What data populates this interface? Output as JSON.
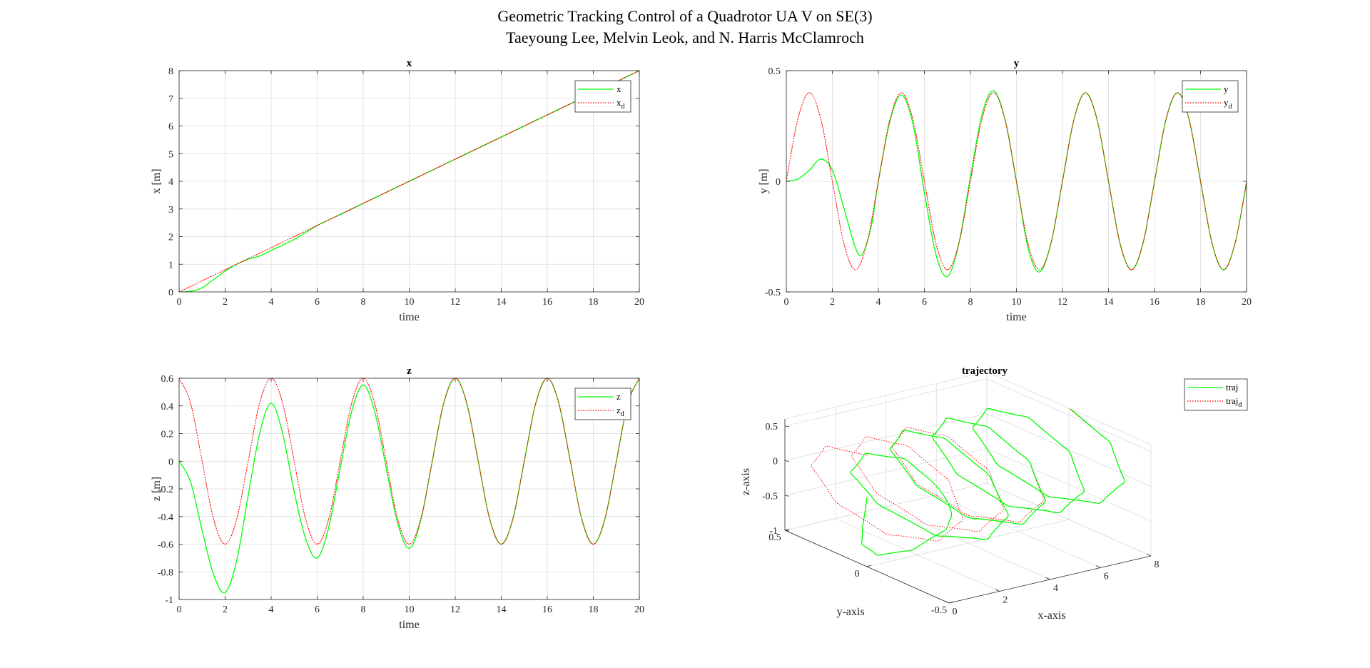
{
  "figure": {
    "title_line1": "Geometric Tracking Control of a Quadrotor UA V on SE(3)",
    "title_line2": "Taeyoung Lee, Melvin Leok, and N. Harris McClamroch"
  },
  "colors": {
    "actual": "#00ff00",
    "desired": "#ff0000"
  },
  "chart_data": [
    {
      "type": "line",
      "title": "x",
      "xlabel": "time",
      "ylabel": "x [m]",
      "xlim": [
        0,
        20
      ],
      "ylim": [
        0,
        8
      ],
      "xticks": [
        0,
        2,
        4,
        6,
        8,
        10,
        12,
        14,
        16,
        18,
        20
      ],
      "yticks": [
        0,
        1,
        2,
        3,
        4,
        5,
        6,
        7,
        8
      ],
      "grid": true,
      "legend_position": "top-right",
      "series": [
        {
          "name": "x",
          "style": "solid",
          "x": [
            0,
            0.5,
            1,
            1.5,
            2,
            2.5,
            3,
            3.5,
            4,
            5,
            6,
            7,
            8,
            9,
            10,
            12,
            14,
            16,
            18,
            20
          ],
          "y": [
            0,
            0.02,
            0.15,
            0.45,
            0.75,
            1.0,
            1.18,
            1.3,
            1.5,
            1.9,
            2.4,
            2.8,
            3.2,
            3.6,
            4.0,
            4.8,
            5.6,
            6.4,
            7.2,
            8.0
          ]
        },
        {
          "name": "x",
          "sub": "d",
          "style": "dotted",
          "x": [
            0,
            1,
            2,
            3,
            4,
            5,
            6,
            7,
            8,
            9,
            10,
            12,
            14,
            16,
            18,
            20
          ],
          "y": [
            0,
            0.4,
            0.8,
            1.2,
            1.6,
            2.0,
            2.4,
            2.8,
            3.2,
            3.6,
            4.0,
            4.8,
            5.6,
            6.4,
            7.2,
            8.0
          ]
        }
      ]
    },
    {
      "type": "line",
      "title": "y",
      "xlabel": "time",
      "ylabel": "y [m]",
      "xlim": [
        0,
        20
      ],
      "ylim": [
        -0.5,
        0.5
      ],
      "xticks": [
        0,
        2,
        4,
        6,
        8,
        10,
        12,
        14,
        16,
        18,
        20
      ],
      "yticks": [
        -0.5,
        0,
        0.5
      ],
      "grid": true,
      "legend_position": "top-right",
      "series": [
        {
          "name": "y",
          "style": "solid",
          "x": [
            0,
            0.5,
            1,
            1.5,
            2,
            2.5,
            3,
            3.3,
            3.7,
            4,
            4.5,
            5,
            5.5,
            6,
            6.5,
            7,
            7.5,
            8,
            8.5,
            9,
            9.5,
            10,
            10.5,
            11,
            11.5,
            12,
            12.5,
            13,
            13.5,
            14,
            14.5,
            15,
            15.5,
            16,
            16.5,
            17,
            17.5,
            18,
            18.5,
            19,
            19.5,
            20
          ],
          "y": [
            0,
            0.01,
            0.05,
            0.1,
            0.05,
            -0.12,
            -0.3,
            -0.33,
            -0.2,
            0.0,
            0.27,
            0.39,
            0.26,
            -0.05,
            -0.33,
            -0.43,
            -0.28,
            0.02,
            0.3,
            0.41,
            0.28,
            0.0,
            -0.3,
            -0.41,
            -0.28,
            0.0,
            0.28,
            0.4,
            0.28,
            0.0,
            -0.28,
            -0.4,
            -0.28,
            0.0,
            0.28,
            0.4,
            0.28,
            0.0,
            -0.28,
            -0.4,
            -0.28,
            -0.01
          ]
        },
        {
          "name": "y",
          "sub": "d",
          "style": "dotted",
          "x": [
            0,
            0.5,
            1,
            1.5,
            2,
            2.5,
            3,
            3.5,
            4,
            4.5,
            5,
            5.5,
            6,
            6.5,
            7,
            7.5,
            8,
            8.5,
            9,
            9.5,
            10,
            10.5,
            11,
            11.5,
            12,
            12.5,
            13,
            13.5,
            14,
            14.5,
            15,
            15.5,
            16,
            16.5,
            17,
            17.5,
            18,
            18.5,
            19,
            19.5,
            20
          ],
          "y": [
            0,
            0.28,
            0.4,
            0.28,
            0,
            -0.28,
            -0.4,
            -0.28,
            0,
            0.28,
            0.4,
            0.28,
            0,
            -0.28,
            -0.4,
            -0.28,
            0,
            0.28,
            0.4,
            0.28,
            0,
            -0.28,
            -0.4,
            -0.28,
            0,
            0.28,
            0.4,
            0.28,
            0,
            -0.28,
            -0.4,
            -0.28,
            0,
            0.28,
            0.4,
            0.28,
            0,
            -0.28,
            -0.4,
            -0.28,
            0
          ]
        }
      ]
    },
    {
      "type": "line",
      "title": "z",
      "xlabel": "time",
      "ylabel": "z [m]",
      "xlim": [
        0,
        20
      ],
      "ylim": [
        -1,
        0.6
      ],
      "xticks": [
        0,
        2,
        4,
        6,
        8,
        10,
        12,
        14,
        16,
        18,
        20
      ],
      "yticks": [
        -1,
        -0.8,
        -0.6,
        -0.4,
        -0.2,
        0,
        0.2,
        0.4,
        0.6
      ],
      "grid": true,
      "legend_position": "top-right",
      "series": [
        {
          "name": "z",
          "style": "solid",
          "x": [
            0,
            0.5,
            1,
            1.5,
            2,
            2.5,
            3,
            3.5,
            4,
            4.5,
            5,
            5.5,
            6,
            6.5,
            7,
            7.5,
            8,
            8.5,
            9,
            9.5,
            10,
            10.5,
            11,
            11.5,
            12,
            12.5,
            13,
            13.5,
            14,
            14.5,
            15,
            15.5,
            16,
            16.5,
            17,
            17.5,
            18,
            18.5,
            19,
            19.5,
            20
          ],
          "y": [
            0,
            -0.15,
            -0.5,
            -0.82,
            -0.95,
            -0.72,
            -0.25,
            0.2,
            0.42,
            0.2,
            -0.22,
            -0.56,
            -0.7,
            -0.48,
            -0.05,
            0.36,
            0.55,
            0.36,
            -0.05,
            -0.45,
            -0.63,
            -0.43,
            0.0,
            0.42,
            0.6,
            0.42,
            0.0,
            -0.42,
            -0.6,
            -0.42,
            0.0,
            0.42,
            0.6,
            0.42,
            0.0,
            -0.42,
            -0.6,
            -0.42,
            0.0,
            0.42,
            0.6
          ]
        },
        {
          "name": "z",
          "sub": "d",
          "style": "dotted",
          "x": [
            0,
            0.5,
            1,
            1.5,
            2,
            2.5,
            3,
            3.5,
            4,
            4.5,
            5,
            5.5,
            6,
            6.5,
            7,
            7.5,
            8,
            8.5,
            9,
            9.5,
            10,
            10.5,
            11,
            11.5,
            12,
            12.5,
            13,
            13.5,
            14,
            14.5,
            15,
            15.5,
            16,
            16.5,
            17,
            17.5,
            18,
            18.5,
            19,
            19.5,
            20
          ],
          "y": [
            0.6,
            0.42,
            0.0,
            -0.42,
            -0.6,
            -0.42,
            0.0,
            0.42,
            0.6,
            0.42,
            0.0,
            -0.42,
            -0.6,
            -0.42,
            0.0,
            0.42,
            0.6,
            0.42,
            0.0,
            -0.42,
            -0.6,
            -0.42,
            0.0,
            0.42,
            0.6,
            0.42,
            0.0,
            -0.42,
            -0.6,
            -0.42,
            0.0,
            0.42,
            0.6,
            0.42,
            0.0,
            -0.42,
            -0.6,
            -0.42,
            0.0,
            0.42,
            0.6
          ]
        }
      ]
    },
    {
      "type": "line3d",
      "title": "trajectory",
      "xlabel": "x-axis",
      "ylabel": "y-axis",
      "zlabel": "z-axis",
      "xlim": [
        0,
        8
      ],
      "ylim": [
        -0.5,
        0.5
      ],
      "zlim": [
        -1,
        0.6
      ],
      "xticks": [
        0,
        2,
        4,
        6,
        8
      ],
      "yticks": [
        -0.5,
        0,
        0.5
      ],
      "zticks": [
        -1,
        -0.5,
        0,
        0.5
      ],
      "grid": true,
      "legend_position": "top-right",
      "series": [
        {
          "name": "traj",
          "style": "solid"
        },
        {
          "name": "traj",
          "sub": "d",
          "style": "dotted"
        }
      ]
    }
  ]
}
